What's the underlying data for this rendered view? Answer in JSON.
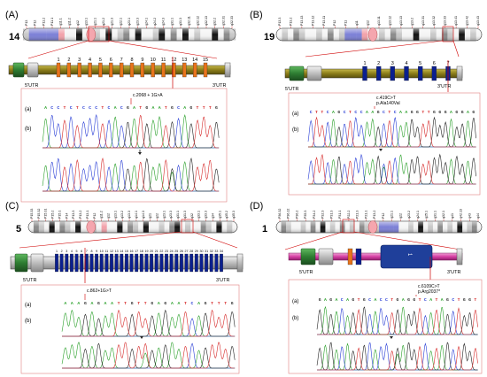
{
  "panels": [
    {
      "letter": "(A)",
      "chromosome": "14",
      "bands": [
        "P13",
        "P12",
        "P11.2",
        "P11.1",
        "q11.1",
        "q11.2",
        "q12",
        "q13.1",
        "q21.1",
        "q21.2",
        "q21.3",
        "q22.1",
        "q23.1",
        "q23.3",
        "q24.1",
        "q24.2",
        "q24.3",
        "q31.1",
        "q31.3",
        "q32.11",
        "q32.12",
        "q32.13",
        "q32.2",
        "q32.31",
        "q32.33"
      ],
      "exons": [
        "1",
        "2",
        "3",
        "4",
        "5",
        "6",
        "7",
        "8",
        "9",
        "10",
        "11",
        "12",
        "13",
        "14",
        "15"
      ],
      "utr5": "5'UTR",
      "utr3": "3'UTR",
      "mutation": "c.2068 + 1G>A",
      "sequence": "ACCTCTCCCTCACGATGAATGCAGTTTG",
      "trace_labels": [
        "(a)",
        "(b)"
      ]
    },
    {
      "letter": "(B)",
      "chromosome": "19",
      "bands": [
        "P13.3",
        "P13.2",
        "P13.13",
        "P13.12",
        "P13.11",
        "P12",
        "P11",
        "q11",
        "q12",
        "q13.11",
        "q13.12",
        "q13.13",
        "q13.2",
        "q13.31",
        "q13.32",
        "q13.33",
        "q13.41",
        "q13.42",
        "q13.43"
      ],
      "exons": [
        "1",
        "2",
        "3",
        "4",
        "5",
        "6",
        "7"
      ],
      "utr5": "5'UTR",
      "utr3": "3'UTR",
      "mutation": "c.419C>T",
      "mutation2": "p.Ala140Val",
      "sequence": "CTTCAGCTCCAAGCTCAAGGTTGGGAGGAG",
      "trace_labels": [
        "(a)",
        "(b)"
      ]
    },
    {
      "letter": "(C)",
      "chromosome": "5",
      "bands": [
        "P15.33",
        "P15.32",
        "P15.31",
        "P15.2",
        "P15.1",
        "P14",
        "P13.3",
        "P13.2",
        "P13.1",
        "P12",
        "q11.2",
        "q12",
        "q13.1",
        "q13.2",
        "q13.3",
        "q14.1",
        "q14.3",
        "q21",
        "q22",
        "q23.1",
        "q23.3",
        "q31.1",
        "q31.3",
        "q32",
        "q33.1",
        "q33.3",
        "q34",
        "q35.1",
        "q35.2",
        "q35.3"
      ],
      "exons": [
        "1",
        "2",
        "3",
        "4",
        "5",
        "6",
        "7",
        "8",
        "9",
        "10",
        "11",
        "12",
        "13",
        "14",
        "15",
        "16",
        "17",
        "18",
        "19",
        "20",
        "21",
        "22",
        "23",
        "24",
        "25",
        "26",
        "27",
        "28",
        "29",
        "30",
        "31",
        "32",
        "33",
        "34"
      ],
      "utr5": "5'UTR",
      "utr3": "3'UTR",
      "mutation": "c.862+1G>T",
      "sequence": "AAAGAGAATTGTTGAGAATCAGTTTG",
      "trace_labels": [
        "(a)",
        "(b)"
      ]
    },
    {
      "letter": "(D)",
      "chromosome": "1",
      "bands": [
        "P36.32",
        "P36.22",
        "P36.2",
        "P35.3",
        "P34.2",
        "P32.3",
        "P31.3",
        "P31.1",
        "P22.2",
        "P21.3",
        "P21.1",
        "P13.2",
        "P12",
        "q21.1",
        "q22",
        "q23.2",
        "q24.1",
        "q25.1",
        "q31.1",
        "q32.1",
        "q41",
        "q42.13",
        "q43",
        "q44"
      ],
      "exons": [
        "1"
      ],
      "utr5": "5'UTR",
      "utr3": "3'UTR",
      "mutation": "c.6109C>T",
      "mutation2": "p.Arg2037*",
      "sequence": "GAGACAGTGCACCTGAGGTCATAGCTGGT",
      "trace_labels": [
        "(a)",
        "(b)"
      ]
    }
  ],
  "colors": {
    "exon_blue": "#0a1f8f",
    "exon_orange": "#e8741c",
    "utr_green": "#2e7d32",
    "gene_olive": "#8b7d1a",
    "gene_magenta": "#d63fa4",
    "trace_green": "#2aa02a",
    "trace_blue": "#2a3fd6",
    "trace_red": "#d62a2a",
    "trace_black": "#222222",
    "marker_red": "#d00000"
  }
}
